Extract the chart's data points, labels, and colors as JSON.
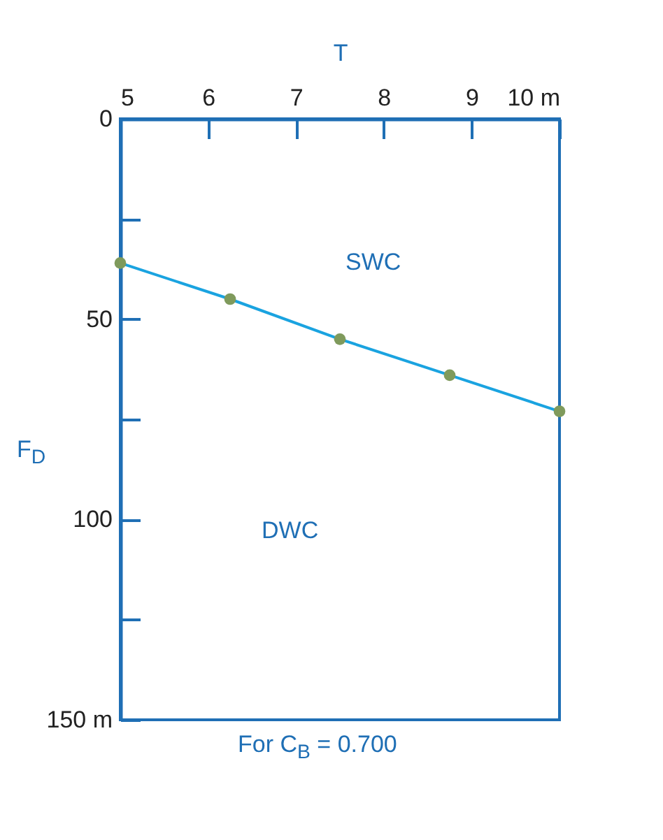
{
  "chart_data": {
    "type": "line",
    "xlabel": "T",
    "ylabel": "F$_{D}$",
    "x": [
      5,
      6.25,
      7.5,
      8.75,
      10
    ],
    "series": [
      {
        "color": "#1aa3e0",
        "values": [
          36,
          45,
          55,
          64,
          73
        ]
      }
    ],
    "xlim": [
      5,
      10
    ],
    "xticks": [
      5,
      6,
      7,
      8,
      9,
      {
        "value": 10,
        "label": "10 m"
      }
    ],
    "ylim": [
      150,
      0
    ],
    "yticks": [
      0,
      {
        "value": 25,
        "label": null
      },
      50,
      {
        "value": 75,
        "label": null
      },
      100,
      {
        "value": 125,
        "label": null
      },
      {
        "value": 150,
        "label": "150 m"
      }
    ],
    "marker": "circle",
    "grid": false,
    "annotations": [
      "SWC",
      "DWC",
      "For C$_{B}$ = 0.700"
    ]
  }
}
